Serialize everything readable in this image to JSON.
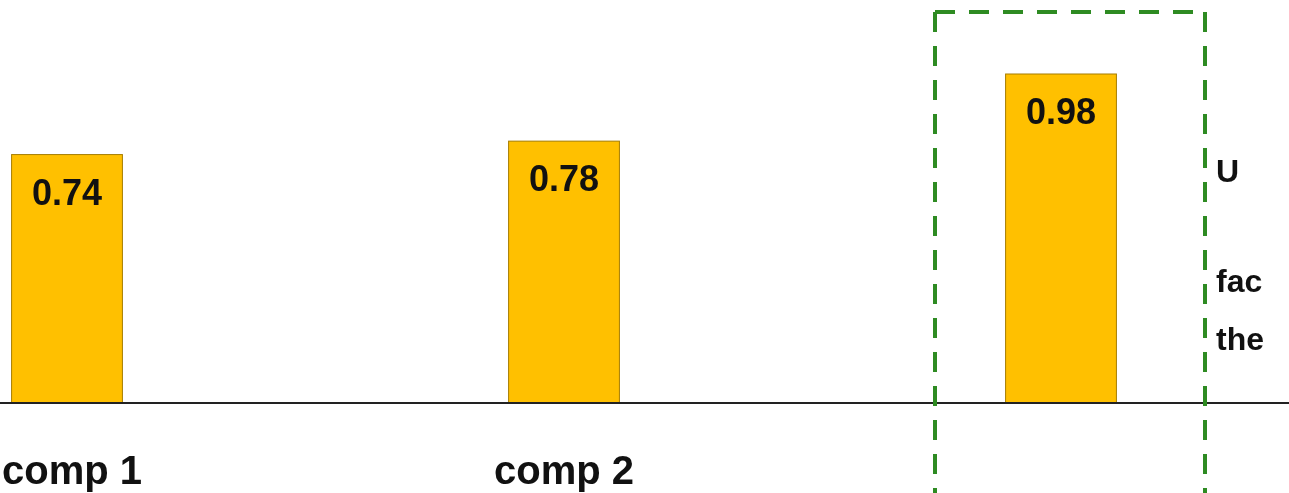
{
  "chart_data": {
    "type": "bar",
    "categories": [
      "comp 1",
      "comp 2",
      null
    ],
    "values": [
      0.74,
      0.78,
      0.98
    ],
    "color": "#ffc000",
    "data_labels": true,
    "relative": false,
    "annotations": [
      "U",
      "fac",
      "the"
    ]
  }
}
